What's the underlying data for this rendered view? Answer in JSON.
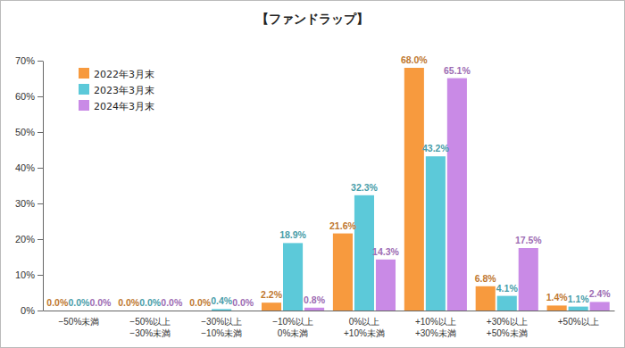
{
  "chart_data": {
    "type": "bar",
    "title": "【ファンドラップ】",
    "categories": [
      "−50%未満",
      "−50%以上\n−30%未満",
      "−30%以上\n−10%未満",
      "−10%以上\n0%未満",
      "0%以上\n+10%未満",
      "+10%以上\n+30%未満",
      "+30%以上\n+50%未満",
      "+50%以上"
    ],
    "series": [
      {
        "name": "2022年3月末",
        "color": "#f79a3e",
        "values": [
          0.0,
          0.0,
          0.0,
          2.2,
          21.6,
          68.0,
          6.8,
          1.4
        ],
        "value_labels": [
          "0.0%",
          "0.0%",
          "0.0%",
          "2.2%",
          "21.6%",
          "68.0%",
          "6.8%",
          "1.4%"
        ]
      },
      {
        "name": "2023年3月末",
        "color": "#5cc9d9",
        "values": [
          0.0,
          0.0,
          0.4,
          18.9,
          32.3,
          43.2,
          4.1,
          1.1
        ],
        "value_labels": [
          "0.0%",
          "0.0%",
          "0.4%",
          "18.9%",
          "32.3%",
          "43.2%",
          "4.1%",
          "1.1%"
        ]
      },
      {
        "name": "2024年3月末",
        "color": "#c98ae6",
        "values": [
          0.0,
          0.0,
          0.0,
          0.8,
          14.3,
          65.1,
          17.5,
          2.4
        ],
        "value_labels": [
          "0.0%",
          "0.0%",
          "0.0%",
          "0.8%",
          "14.3%",
          "65.1%",
          "17.5%",
          "2.4%"
        ]
      }
    ],
    "ylim": [
      0,
      70
    ],
    "yticks": [
      {
        "value": 0,
        "label": "0%"
      },
      {
        "value": 10,
        "label": "10%"
      },
      {
        "value": 20,
        "label": "20%"
      },
      {
        "value": 30,
        "label": "30%"
      },
      {
        "value": 40,
        "label": "40%"
      },
      {
        "value": 50,
        "label": "50%"
      },
      {
        "value": 60,
        "label": "60%"
      },
      {
        "value": 70,
        "label": "70%"
      }
    ],
    "grid": false,
    "legend": "top-left",
    "data_labels": true
  }
}
